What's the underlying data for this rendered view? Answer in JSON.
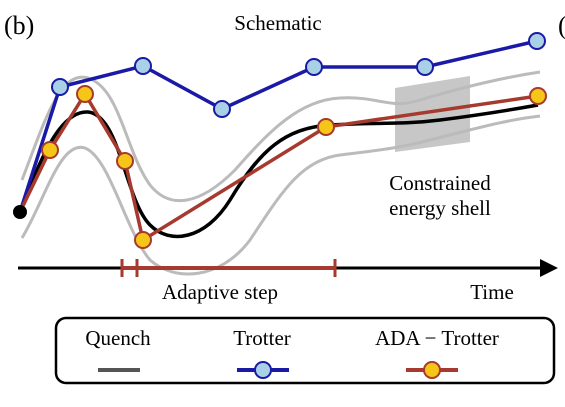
{
  "panel_label": "(b)",
  "next_panel_label": "(",
  "title": "Schematic",
  "annotation": {
    "line1": "Constrained",
    "line2": "energy shell"
  },
  "step_label": "Adaptive step",
  "axis_label": "Time",
  "legend": [
    "Quench",
    "Trotter",
    "ADA − Trotter"
  ]
}
